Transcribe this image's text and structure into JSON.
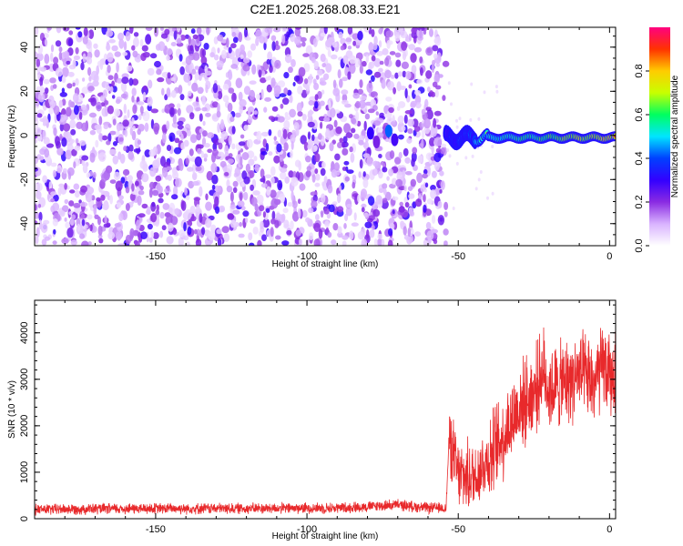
{
  "title": "C2E1.2025.268.08.33.E21",
  "chart_data": [
    {
      "type": "heatmap",
      "xlabel": "Height of straight line (km)",
      "ylabel": "Frequency (Hz)",
      "xlim": [
        -190,
        2
      ],
      "ylim": [
        -50,
        49
      ],
      "x_ticks": [
        "-150",
        "-100",
        "-50",
        "0"
      ],
      "x_tick_values": [
        -150,
        -100,
        -50,
        0
      ],
      "y_ticks": [
        "40",
        "20",
        "0",
        "-20",
        "-40"
      ],
      "y_tick_values": [
        40,
        20,
        0,
        -20,
        -40
      ],
      "noise_region_km": [
        -190,
        -54
      ],
      "signal_ridge_frequency_hz": -1,
      "colorbar": {
        "label": "Normalized spectral amplitude",
        "range": [
          0,
          1
        ],
        "ticks": [
          "0.0",
          "0.2",
          "0.4",
          "0.6",
          "0.8"
        ],
        "tick_values": [
          0,
          0.2,
          0.4,
          0.6,
          0.8
        ],
        "colors": [
          "#ffffff",
          "#d9b3ff",
          "#8a2be2",
          "#3300ff",
          "#0040ff",
          "#00e5ff",
          "#00ff60",
          "#c8ff00",
          "#ffcc00",
          "#ff3300",
          "#ff0080"
        ]
      }
    },
    {
      "type": "line",
      "xlabel": "Height of straight line (km)",
      "ylabel": "SNR (10 * v/v)",
      "xlim": [
        -190,
        2
      ],
      "ylim": [
        0,
        4700
      ],
      "x_ticks": [
        "-150",
        "-100",
        "-50",
        "0"
      ],
      "x_tick_values": [
        -150,
        -100,
        -50,
        0
      ],
      "y_ticks": [
        "4000",
        "3000",
        "2000",
        "1000",
        "0"
      ],
      "y_tick_values": [
        4000,
        3000,
        2000,
        1000,
        0
      ],
      "line_color": "#e8292b",
      "series": [
        {
          "values_x": [
            -190,
            -170,
            -150,
            -130,
            -110,
            -90,
            -80,
            -70,
            -60,
            -54,
            -53,
            -50,
            -45,
            -40,
            -35,
            -30,
            -25,
            -22,
            -20,
            -15,
            -10,
            -5,
            -2,
            0,
            2
          ],
          "values_y": [
            200,
            210,
            220,
            220,
            225,
            230,
            260,
            300,
            230,
            230,
            1800,
            900,
            900,
            1300,
            1800,
            2400,
            2700,
            3200,
            2800,
            2900,
            3100,
            2900,
            3300,
            3000,
            3200
          ]
        }
      ]
    }
  ]
}
